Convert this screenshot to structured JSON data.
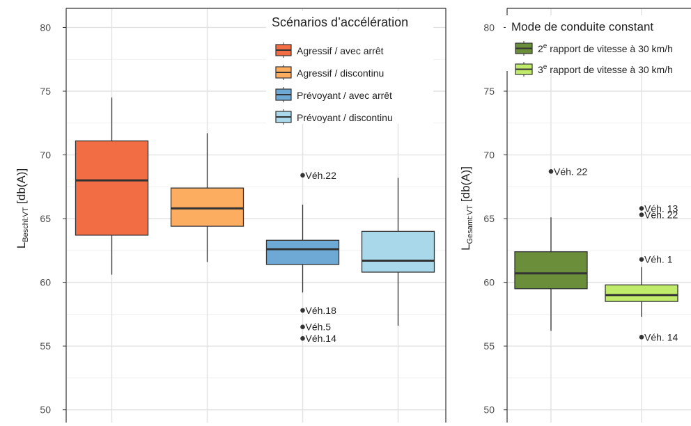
{
  "chart_data": [
    {
      "type": "box",
      "ylabel_main": "L",
      "ylabel_sub": "Beschl:VT",
      "ylabel_rest": " [db(A)]",
      "ylim": [
        49,
        81.5
      ],
      "yticks": [
        50,
        55,
        60,
        65,
        70,
        75,
        80
      ],
      "grid": true,
      "legend": {
        "title": "Scénarios d’accélération",
        "placement": "top-right"
      },
      "series": [
        {
          "name": "Agressif / avec arrêt",
          "color": "#f26d43",
          "whisker_low": 60.6,
          "q1": 63.7,
          "median": 68.0,
          "q3": 71.1,
          "whisker_high": 74.5,
          "outliers": []
        },
        {
          "name": "Agressif / discontinu",
          "color": "#fdad60",
          "whisker_low": 61.6,
          "q1": 64.4,
          "median": 65.8,
          "q3": 67.4,
          "whisker_high": 71.7,
          "outliers": []
        },
        {
          "name": "Prévoyant / avec arrêt",
          "color": "#6ea8d4",
          "whisker_low": 59.2,
          "q1": 61.4,
          "median": 62.6,
          "q3": 63.3,
          "whisker_high": 66.1,
          "outliers": [
            {
              "value": 68.4,
              "label": "Véh.22"
            },
            {
              "value": 57.8,
              "label": "Véh.18"
            },
            {
              "value": 56.5,
              "label": "Véh.5"
            },
            {
              "value": 55.6,
              "label": "Véh.14"
            }
          ]
        },
        {
          "name": "Prévoyant / discontinu",
          "color": "#a9d8ea",
          "whisker_low": 56.6,
          "q1": 60.8,
          "median": 61.7,
          "q3": 64.0,
          "whisker_high": 68.2,
          "outliers": []
        }
      ]
    },
    {
      "type": "box",
      "ylabel_main": "L",
      "ylabel_sub": "Gesamt:VT",
      "ylabel_rest": " [db(A)]",
      "ylim": [
        49,
        81.5
      ],
      "yticks": [
        50,
        55,
        60,
        65,
        70,
        75,
        80
      ],
      "grid": true,
      "legend": {
        "title": "Mode de conduite constant",
        "placement": "top-right"
      },
      "series": [
        {
          "name_prefix": "2",
          "name_sup": "e",
          "name": "rapport de vitesse à 30 km/h",
          "color": "#6a8e3a",
          "whisker_low": 56.2,
          "q1": 59.5,
          "median": 60.7,
          "q3": 62.4,
          "whisker_high": 65.1,
          "outliers": [
            {
              "value": 68.7,
              "label": "Véh. 22"
            }
          ]
        },
        {
          "name_prefix": "3",
          "name_sup": "e",
          "name": "rapport de vitesse à 30 km/h",
          "color": "#bfea6a",
          "whisker_low": 57.3,
          "q1": 58.5,
          "median": 59.0,
          "q3": 59.8,
          "whisker_high": 61.2,
          "outliers": [
            {
              "value": 65.8,
              "label": "Véh. 13"
            },
            {
              "value": 65.3,
              "label": "Véh. 22"
            },
            {
              "value": 61.8,
              "label": "Véh. 1"
            },
            {
              "value": 55.7,
              "label": "Véh. 14"
            }
          ]
        }
      ]
    }
  ]
}
